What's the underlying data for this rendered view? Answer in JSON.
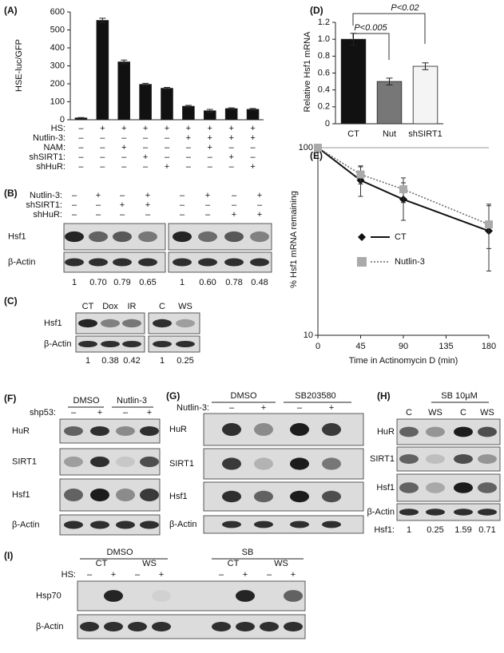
{
  "chart_data": [
    {
      "type": "bar",
      "panel": "(A)",
      "y_label": "HSE-luc/GFP",
      "values": [
        10,
        553,
        322,
        197,
        175,
        75,
        50,
        62,
        58
      ],
      "errors": [
        2,
        12,
        10,
        6,
        5,
        5,
        8,
        4,
        5
      ],
      "color": "#111111",
      "ylim": [
        0,
        600
      ],
      "yticks": [
        0,
        100,
        200,
        300,
        400,
        500,
        600
      ],
      "conditions": [
        {
          "name": "HS:",
          "signs": [
            "–",
            "+",
            "+",
            "+",
            "+",
            "+",
            "+",
            "+",
            "+"
          ]
        },
        {
          "name": "Nutlin-3:",
          "signs": [
            "–",
            "–",
            "–",
            "–",
            "–",
            "+",
            "+",
            "+",
            "+"
          ]
        },
        {
          "name": "NAM:",
          "signs": [
            "–",
            "–",
            "+",
            "–",
            "–",
            "–",
            "+",
            "–",
            "–"
          ]
        },
        {
          "name": "shSIRT1:",
          "signs": [
            "–",
            "–",
            "–",
            "+",
            "–",
            "–",
            "–",
            "+",
            "–"
          ]
        },
        {
          "name": "shHuR:",
          "signs": [
            "–",
            "–",
            "–",
            "–",
            "+",
            "–",
            "–",
            "–",
            "+"
          ]
        }
      ]
    },
    {
      "type": "bar",
      "panel": "(D)",
      "y_label": "Relative Hsf1 mRNA",
      "categories": [
        "CT",
        "Nut",
        "shSIRT1"
      ],
      "values": [
        1.0,
        0.5,
        0.68
      ],
      "errors": [
        0.07,
        0.04,
        0.04
      ],
      "colors": [
        "#111111",
        "#777777",
        "#f4f4f4"
      ],
      "ylim": [
        0,
        1.2
      ],
      "yticks": [
        0,
        0.2,
        0.4,
        0.6,
        0.8,
        {
          "value": 1,
          "label": "1.0"
        },
        1.2
      ],
      "annotations": [
        "P<0.02",
        "P<0.005"
      ]
    },
    {
      "type": "line",
      "panel": "(E)",
      "y_label": "% Hsf1 mRNA remaining",
      "x_label": "Time in Actinomycin D (min)",
      "x": [
        0,
        45,
        90,
        180
      ],
      "xlim": [
        0,
        180
      ],
      "xticks": [
        0,
        45,
        90,
        135,
        180
      ],
      "log_y": true,
      "ylim": [
        10,
        100
      ],
      "yticks": [
        10,
        100
      ],
      "series": [
        {
          "name": "CT",
          "color": "#111111",
          "values": [
            100,
            67,
            53,
            36
          ],
          "errors": [
            0,
            12,
            12,
            14
          ]
        },
        {
          "name": "Nutlin-3",
          "color": "#aaaaaa",
          "values": [
            100,
            72,
            60,
            39
          ],
          "errors": [
            0,
            8,
            9,
            10
          ]
        }
      ]
    }
  ],
  "blots": [
    {
      "panel": "(B)",
      "conditions": [
        {
          "name": "Nutlin-3:",
          "signs": [
            "–",
            "+",
            "–",
            "+",
            "–",
            "+",
            "–",
            "+"
          ]
        },
        {
          "name": "shSIRT1:",
          "signs": [
            "–",
            "–",
            "+",
            "+",
            "–",
            "–",
            "–",
            "–"
          ]
        },
        {
          "name": "shHuR:",
          "signs": [
            "–",
            "–",
            "–",
            "–",
            "–",
            "–",
            "+",
            "+"
          ]
        }
      ],
      "rows": [
        "Hsf1",
        "β-Actin"
      ],
      "quant": [
        "1",
        "0.70",
        "0.79",
        "0.65",
        "1",
        "0.60",
        "0.78",
        "0.48"
      ]
    },
    {
      "panel": "(C)",
      "lanes": [
        "CT",
        "Dox",
        "IR",
        "C",
        "WS"
      ],
      "rows": [
        "Hsf1",
        "β-Actin"
      ],
      "quant": [
        "1",
        "0.38",
        "0.42",
        "1",
        "0.25"
      ]
    },
    {
      "panel": "(F)",
      "groups": [
        "DMSO",
        "Nutlin-3"
      ],
      "conditions": [
        {
          "name": "shp53:",
          "signs": [
            "–",
            "+",
            "–",
            "+"
          ]
        }
      ],
      "rows": [
        "HuR",
        "SIRT1",
        "Hsf1",
        "β-Actin"
      ]
    },
    {
      "panel": "(G)",
      "groups": [
        "DMSO",
        "SB203580"
      ],
      "conditions": [
        {
          "name": "Nutlin-3:",
          "signs": [
            "–",
            "+",
            "–",
            "+"
          ]
        }
      ],
      "rows": [
        "HuR",
        "SIRT1",
        "Hsf1",
        "β-Actin"
      ]
    },
    {
      "panel": "(H)",
      "groups": [
        "SB 10µM"
      ],
      "lanes": [
        "C",
        "WS",
        "C",
        "WS"
      ],
      "rows": [
        "HuR",
        "SIRT1",
        "Hsf1",
        "β-Actin"
      ],
      "quant_label": "Hsf1:",
      "quant": [
        "1",
        "0.25",
        "1.59",
        "0.71"
      ]
    },
    {
      "panel": "(I)",
      "groups": [
        "DMSO",
        "SB"
      ],
      "lanes": [
        "CT",
        "WS",
        "CT",
        "WS"
      ],
      "conditions": [
        {
          "name": "HS:",
          "signs": [
            "–",
            "+",
            "–",
            "+",
            "–",
            "+",
            "–",
            "+"
          ]
        }
      ],
      "rows": [
        "Hsp70",
        "β-Actin"
      ]
    }
  ]
}
